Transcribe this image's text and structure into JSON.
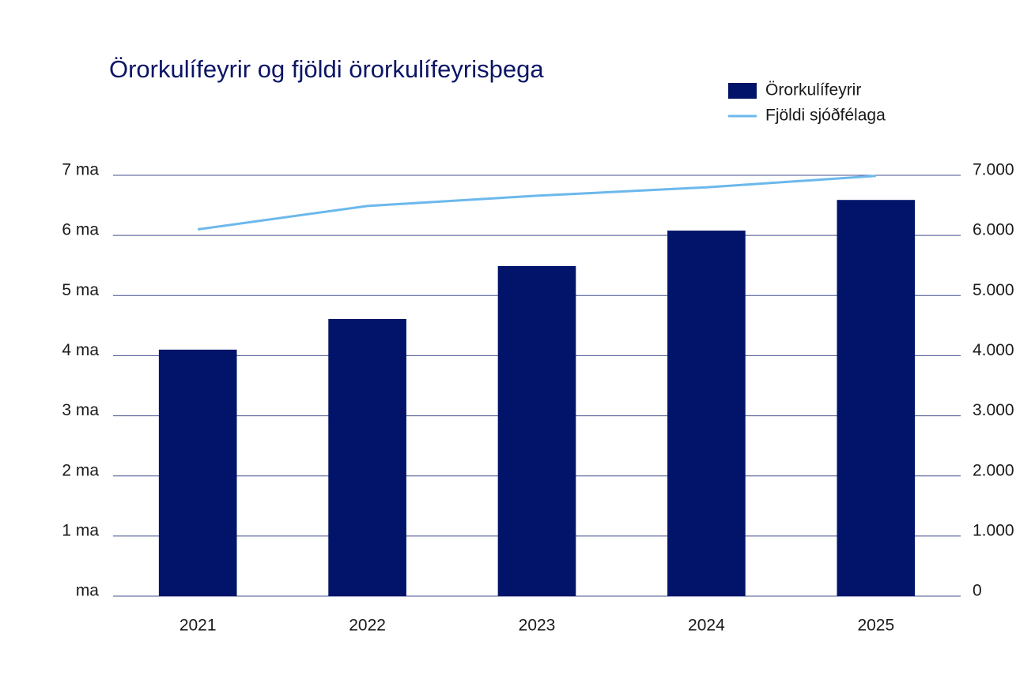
{
  "chart_data": {
    "type": "bar",
    "title": "Örorkulífeyrir og fjöldi örorkulífeyrisþega",
    "categories": [
      "2021",
      "2022",
      "2023",
      "2024",
      "2025"
    ],
    "series": [
      {
        "name": "Örorkulífeyrir",
        "color": "#021469",
        "values": [
          4.1,
          4.61,
          5.49,
          6.08,
          6.59
        ]
      },
      {
        "name": "Fjöldi sjóðfélaga",
        "type": "line",
        "axis": "y2",
        "color": "#6cb8ec",
        "values": [
          6100,
          6490,
          6660,
          6800,
          6990
        ]
      }
    ],
    "ylim": [
      0,
      7
    ],
    "yticks": [
      {
        "value": 0,
        "label": "ma"
      },
      {
        "value": 1,
        "label": "1 ma"
      },
      {
        "value": 2,
        "label": "2 ma"
      },
      {
        "value": 3,
        "label": "3 ma"
      },
      {
        "value": 4,
        "label": "4 ma"
      },
      {
        "value": 5,
        "label": "5 ma"
      },
      {
        "value": 6,
        "label": "6 ma"
      },
      {
        "value": 7,
        "label": "7 ma"
      }
    ],
    "y2lim": [
      0,
      7000
    ],
    "y2ticks": [
      0,
      {
        "value": 1000,
        "label": "1.000"
      },
      {
        "value": 2000,
        "label": "2.000"
      },
      {
        "value": 3000,
        "label": "3.000"
      },
      {
        "value": 4000,
        "label": "4.000"
      },
      {
        "value": 5000,
        "label": "5.000"
      },
      {
        "value": 6000,
        "label": "6.000"
      },
      {
        "value": 7000,
        "label": "7.000"
      }
    ],
    "grid": true,
    "legend": "top-right"
  }
}
